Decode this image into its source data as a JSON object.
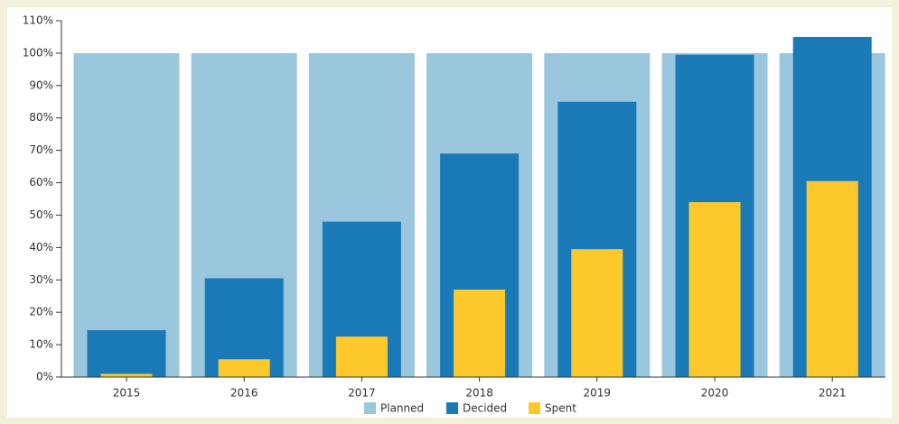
{
  "chart_data": {
    "type": "overlap-bar",
    "categories": [
      "2015",
      "2016",
      "2017",
      "2018",
      "2019",
      "2020",
      "2021"
    ],
    "series": [
      {
        "name": "Planned",
        "color": "#9ac7dd",
        "values": [
          100,
          100,
          100,
          100,
          100,
          100,
          100
        ]
      },
      {
        "name": "Decided",
        "color": "#1a7ab8",
        "values": [
          14.5,
          30.5,
          48,
          69,
          85,
          99.5,
          105
        ]
      },
      {
        "name": "Spent",
        "color": "#fdc82b",
        "values": [
          1,
          5.5,
          12.5,
          27,
          39.5,
          54,
          60.5
        ]
      }
    ],
    "ylim": [
      0,
      110
    ],
    "yticks": [
      {
        "value": 0,
        "label": "0%"
      },
      {
        "value": 10,
        "label": "10%"
      },
      {
        "value": 20,
        "label": "20%"
      },
      {
        "value": 30,
        "label": "30%"
      },
      {
        "value": 40,
        "label": "40%"
      },
      {
        "value": 50,
        "label": "50%"
      },
      {
        "value": 60,
        "label": "60%"
      },
      {
        "value": 70,
        "label": "70%"
      },
      {
        "value": 80,
        "label": "80%"
      },
      {
        "value": 90,
        "label": "90%"
      },
      {
        "value": 100,
        "label": "100%"
      },
      {
        "value": 110,
        "label": "110%"
      }
    ],
    "legend": "bottom"
  }
}
